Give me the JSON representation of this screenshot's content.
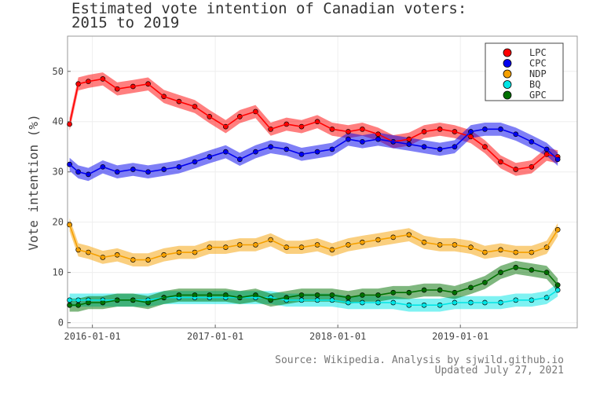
{
  "chart_data": {
    "type": "scatter",
    "title_lines": [
      "Estimated vote intention of Canadian voters:",
      "2015 to 2019"
    ],
    "ylabel": "Vote intention (%)",
    "xlabel": "",
    "x_ticks": [
      "2016-01-01",
      "2017-01-01",
      "2018-01-01",
      "2019-01-01"
    ],
    "y_ticks": [
      0,
      10,
      20,
      30,
      40,
      50
    ],
    "xlim": [
      "2015-10-19",
      "2019-12-15"
    ],
    "ylim": [
      -1,
      57
    ],
    "grid": true,
    "legend_position": "top-right",
    "series": [
      {
        "name": "LPC",
        "color": "#ff0000",
        "x": [
          "2015-10-25",
          "2015-11-20",
          "2015-12-20",
          "2016-02-01",
          "2016-03-15",
          "2016-05-01",
          "2016-06-15",
          "2016-08-01",
          "2016-09-15",
          "2016-11-01",
          "2016-12-15",
          "2017-02-01",
          "2017-03-15",
          "2017-05-01",
          "2017-06-15",
          "2017-08-01",
          "2017-09-15",
          "2017-11-01",
          "2017-12-15",
          "2018-02-01",
          "2018-03-15",
          "2018-05-01",
          "2018-06-15",
          "2018-08-01",
          "2018-09-15",
          "2018-11-01",
          "2018-12-15",
          "2019-02-01",
          "2019-03-15",
          "2019-05-01",
          "2019-06-15",
          "2019-08-01",
          "2019-09-15",
          "2019-10-18"
        ],
        "values": [
          39.5,
          47.5,
          48.0,
          48.5,
          46.5,
          47.0,
          47.5,
          45.0,
          44.0,
          43.0,
          41.0,
          39.0,
          41.0,
          42.0,
          38.5,
          39.5,
          39.0,
          40.0,
          38.5,
          38.0,
          38.5,
          37.5,
          36.0,
          36.5,
          38.0,
          38.5,
          38.0,
          37.0,
          35.0,
          32.0,
          30.5,
          31.0,
          33.5,
          33.0
        ]
      },
      {
        "name": "CPC",
        "color": "#0000ee",
        "x": [
          "2015-10-25",
          "2015-11-20",
          "2015-12-20",
          "2016-02-01",
          "2016-03-15",
          "2016-05-01",
          "2016-06-15",
          "2016-08-01",
          "2016-09-15",
          "2016-11-01",
          "2016-12-15",
          "2017-02-01",
          "2017-03-15",
          "2017-05-01",
          "2017-06-15",
          "2017-08-01",
          "2017-09-15",
          "2017-11-01",
          "2017-12-15",
          "2018-02-01",
          "2018-03-15",
          "2018-05-01",
          "2018-06-15",
          "2018-08-01",
          "2018-09-15",
          "2018-11-01",
          "2018-12-15",
          "2019-02-01",
          "2019-03-15",
          "2019-05-01",
          "2019-06-15",
          "2019-08-01",
          "2019-09-15",
          "2019-10-18"
        ],
        "values": [
          31.5,
          30.0,
          29.5,
          31.0,
          30.0,
          30.5,
          30.0,
          30.5,
          31.0,
          32.0,
          33.0,
          34.0,
          32.5,
          34.0,
          35.0,
          34.5,
          33.5,
          34.0,
          34.5,
          36.5,
          36.0,
          36.5,
          36.0,
          35.5,
          35.0,
          34.5,
          35.0,
          38.0,
          38.5,
          38.5,
          37.5,
          36.0,
          34.5,
          32.5
        ]
      },
      {
        "name": "NDP",
        "color": "#f5a000",
        "x": [
          "2015-10-25",
          "2015-11-20",
          "2015-12-20",
          "2016-02-01",
          "2016-03-15",
          "2016-05-01",
          "2016-06-15",
          "2016-08-01",
          "2016-09-15",
          "2016-11-01",
          "2016-12-15",
          "2017-02-01",
          "2017-03-15",
          "2017-05-01",
          "2017-06-15",
          "2017-08-01",
          "2017-09-15",
          "2017-11-01",
          "2017-12-15",
          "2018-02-01",
          "2018-03-15",
          "2018-05-01",
          "2018-06-15",
          "2018-08-01",
          "2018-09-15",
          "2018-11-01",
          "2018-12-15",
          "2019-02-01",
          "2019-03-15",
          "2019-05-01",
          "2019-06-15",
          "2019-08-01",
          "2019-09-15",
          "2019-10-18"
        ],
        "values": [
          19.5,
          14.5,
          14.0,
          13.0,
          13.5,
          12.5,
          12.5,
          13.5,
          14.0,
          14.0,
          15.0,
          15.0,
          15.5,
          15.5,
          16.5,
          15.0,
          15.0,
          15.5,
          14.5,
          15.5,
          16.0,
          16.5,
          17.0,
          17.5,
          16.0,
          15.5,
          15.5,
          15.0,
          14.0,
          14.5,
          14.0,
          14.0,
          15.0,
          18.5
        ]
      },
      {
        "name": "BQ",
        "color": "#00e5e5",
        "x": [
          "2015-10-25",
          "2015-11-20",
          "2015-12-20",
          "2016-02-01",
          "2016-03-15",
          "2016-05-01",
          "2016-06-15",
          "2016-08-01",
          "2016-09-15",
          "2016-11-01",
          "2016-12-15",
          "2017-02-01",
          "2017-03-15",
          "2017-05-01",
          "2017-06-15",
          "2017-08-01",
          "2017-09-15",
          "2017-11-01",
          "2017-12-15",
          "2018-02-01",
          "2018-03-15",
          "2018-05-01",
          "2018-06-15",
          "2018-08-01",
          "2018-09-15",
          "2018-11-01",
          "2018-12-15",
          "2019-02-01",
          "2019-03-15",
          "2019-05-01",
          "2019-06-15",
          "2019-08-01",
          "2019-09-15",
          "2019-10-18"
        ],
        "values": [
          4.5,
          4.5,
          4.5,
          4.5,
          4.5,
          4.5,
          4.5,
          5.0,
          5.0,
          5.0,
          5.0,
          5.0,
          5.0,
          5.0,
          5.0,
          4.5,
          4.5,
          4.5,
          4.5,
          4.0,
          4.0,
          4.0,
          4.0,
          3.5,
          3.5,
          3.5,
          4.0,
          4.0,
          4.0,
          4.0,
          4.5,
          4.5,
          5.0,
          6.5
        ]
      },
      {
        "name": "GPC",
        "color": "#007000",
        "x": [
          "2015-10-25",
          "2015-11-20",
          "2015-12-20",
          "2016-02-01",
          "2016-03-15",
          "2016-05-01",
          "2016-06-15",
          "2016-08-01",
          "2016-09-15",
          "2016-11-01",
          "2016-12-15",
          "2017-02-01",
          "2017-03-15",
          "2017-05-01",
          "2017-06-15",
          "2017-08-01",
          "2017-09-15",
          "2017-11-01",
          "2017-12-15",
          "2018-02-01",
          "2018-03-15",
          "2018-05-01",
          "2018-06-15",
          "2018-08-01",
          "2018-09-15",
          "2018-11-01",
          "2018-12-15",
          "2019-02-01",
          "2019-03-15",
          "2019-05-01",
          "2019-06-15",
          "2019-08-01",
          "2019-09-15",
          "2019-10-18"
        ],
        "values": [
          3.5,
          3.5,
          4.0,
          4.0,
          4.5,
          4.5,
          4.0,
          5.0,
          5.5,
          5.5,
          5.5,
          5.5,
          5.0,
          5.5,
          4.5,
          5.0,
          5.5,
          5.5,
          5.5,
          5.0,
          5.5,
          5.5,
          6.0,
          6.0,
          6.5,
          6.5,
          6.0,
          7.0,
          8.0,
          10.0,
          11.0,
          10.5,
          10.0,
          7.5
        ]
      }
    ]
  },
  "source_lines": [
    "Source: Wikipedia. Analysis by sjwild.github.io",
    "Updated July 27, 2021"
  ]
}
